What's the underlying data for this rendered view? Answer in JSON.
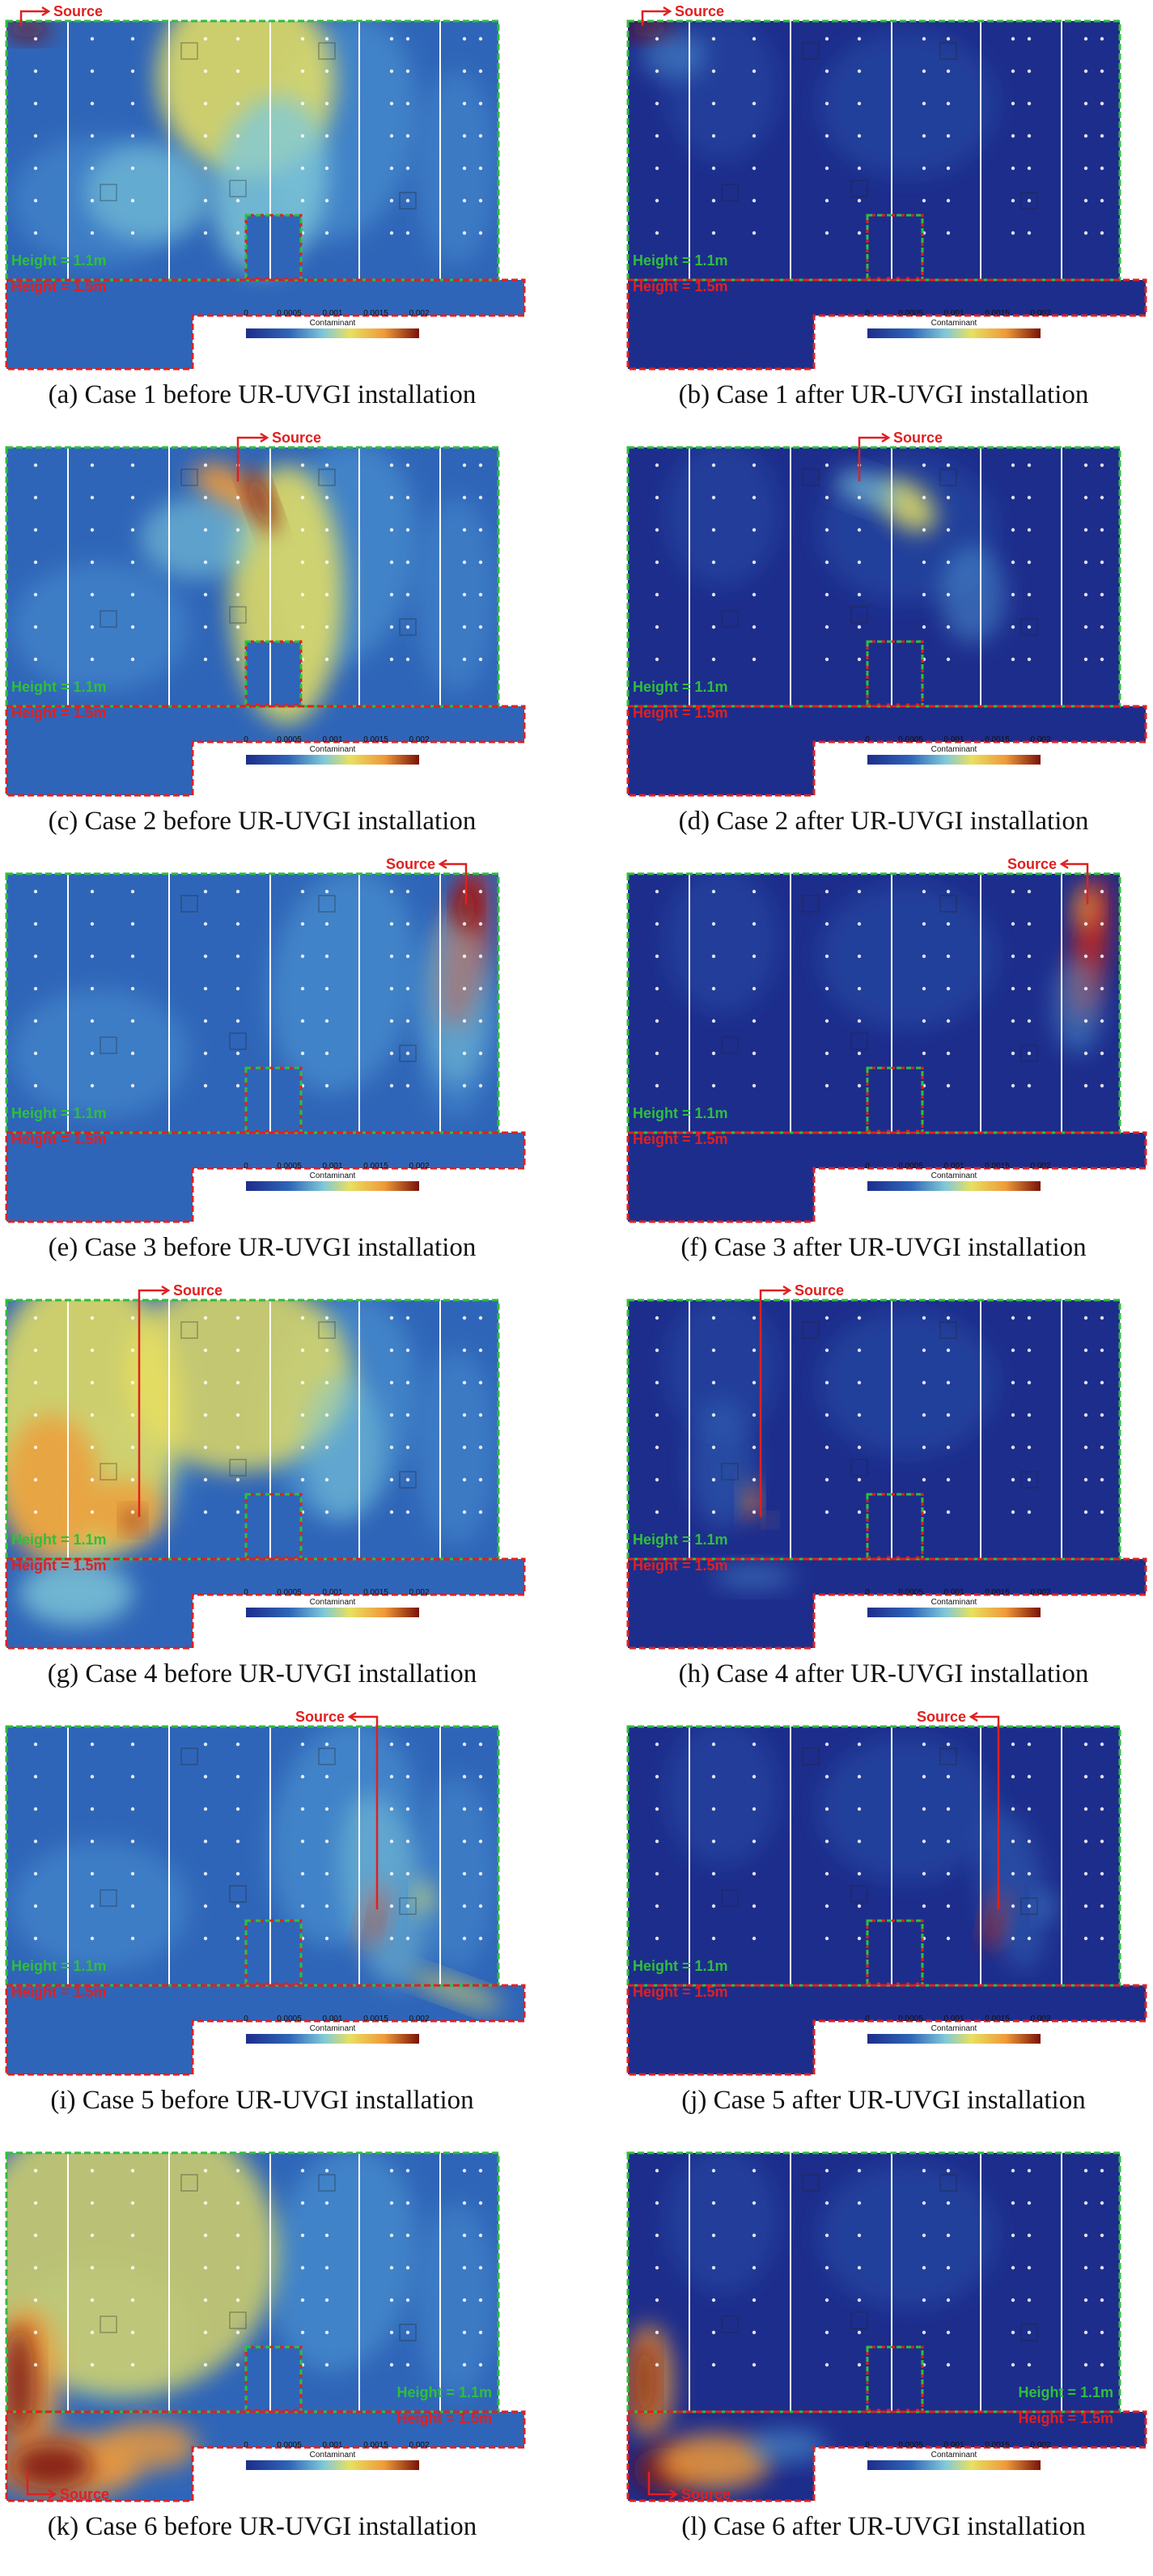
{
  "source_label": "Source",
  "height_upper": "Height = 1.1m",
  "height_lower": "Height = 1.5m",
  "colorbar": {
    "title": "Contaminant",
    "ticks": [
      "0",
      "0.0005",
      "0.001",
      "0.0015",
      "0.002"
    ]
  },
  "colors": {
    "upper_outline": "#2fbf3b",
    "lower_outline": "#e02020",
    "source_marker": "#e02020",
    "dark_blue": "#1d2d8c",
    "mid_blue": "#2f65b8",
    "light_blue": "#4f9ad6",
    "cyan": "#7fc9d8",
    "yellow": "#e8e060",
    "orange": "#ef9a3a",
    "red": "#c8261a",
    "dark_red": "#7a1208"
  },
  "panels": [
    {
      "caption": "(a) Case 1 before UR-UVGI installation",
      "case": 1,
      "phase": "before",
      "bg": "mid",
      "source_pos": "top-left"
    },
    {
      "caption": "(b) Case 1 after UR-UVGI installation",
      "case": 1,
      "phase": "after",
      "bg": "dark",
      "source_pos": "top-left"
    },
    {
      "caption": "(c) Case 2 before UR-UVGI installation",
      "case": 2,
      "phase": "before",
      "bg": "mid",
      "source_pos": "top-center"
    },
    {
      "caption": "(d) Case 2 after UR-UVGI installation",
      "case": 2,
      "phase": "after",
      "bg": "dark",
      "source_pos": "top-center"
    },
    {
      "caption": "(e) Case 3 before UR-UVGI installation",
      "case": 3,
      "phase": "before",
      "bg": "mid",
      "source_pos": "top-right"
    },
    {
      "caption": "(f) Case 3 after UR-UVGI installation",
      "case": 3,
      "phase": "after",
      "bg": "dark",
      "source_pos": "top-right"
    },
    {
      "caption": "(g) Case 4 before UR-UVGI installation",
      "case": 4,
      "phase": "before",
      "bg": "mid",
      "source_pos": "center-left"
    },
    {
      "caption": "(h) Case 4 after UR-UVGI installation",
      "case": 4,
      "phase": "after",
      "bg": "dark",
      "source_pos": "center-left"
    },
    {
      "caption": "(i) Case 5 before UR-UVGI installation",
      "case": 5,
      "phase": "before",
      "bg": "mid",
      "source_pos": "center-right"
    },
    {
      "caption": "(j) Case 5 after UR-UVGI installation",
      "case": 5,
      "phase": "after",
      "bg": "dark",
      "source_pos": "center-right"
    },
    {
      "caption": "(k) Case 6 before UR-UVGI installation",
      "case": 6,
      "phase": "before",
      "bg": "mid",
      "source_pos": "bottom-left"
    },
    {
      "caption": "(l) Case 6 after UR-UVGI installation",
      "case": 6,
      "phase": "after",
      "bg": "dark",
      "source_pos": "bottom-left"
    }
  ]
}
